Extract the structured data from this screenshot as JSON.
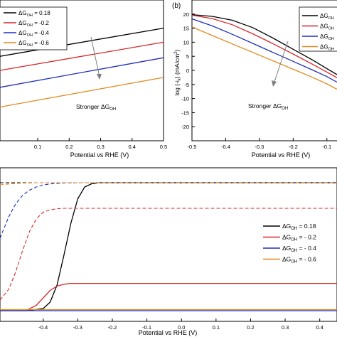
{
  "colors": {
    "s018": "#000000",
    "s02": "#d62728",
    "s04": "#1f2fbf",
    "s06": "#e08a1e",
    "arrow": "#808080"
  },
  "panel_b_label": "(b)",
  "chart_data": [
    {
      "id": "panel-a",
      "type": "line",
      "title": "",
      "xlabel": "Potential vs RHE (V)",
      "ylabel": "",
      "xlim": [
        -0.02,
        0.5
      ],
      "ylim": [
        0,
        10
      ],
      "xticks": [
        "0.1",
        "0.2",
        "0.3",
        "0.4",
        "0.5"
      ],
      "xtick_values": [
        0.1,
        0.2,
        0.3,
        0.4,
        0.5
      ],
      "grid": false,
      "legend_position": "top-left",
      "legend": [
        "ΔG_OH = 0.18",
        "ΔG_OH = -0.2",
        "ΔG_OH = -0.4",
        "ΔG_OH = -0.6"
      ],
      "annotation": "Stronger ΔG_OH",
      "series": [
        {
          "name": "ΔG_OH = 0.18",
          "color_key": "s018",
          "x": [
            -0.02,
            0.5
          ],
          "y": [
            6.0,
            8.0
          ]
        },
        {
          "name": "ΔG_OH = -0.2",
          "color_key": "s02",
          "x": [
            -0.02,
            0.5
          ],
          "y": [
            5.0,
            7.0
          ]
        },
        {
          "name": "ΔG_OH = -0.4",
          "color_key": "s04",
          "x": [
            -0.02,
            0.5
          ],
          "y": [
            3.8,
            5.9
          ]
        },
        {
          "name": "ΔG_OH = -0.6",
          "color_key": "s06",
          "x": [
            -0.02,
            0.5
          ],
          "y": [
            2.4,
            4.5
          ]
        }
      ]
    },
    {
      "id": "panel-b",
      "type": "line",
      "title": "",
      "xlabel": "Potential vs RHE (V)",
      "ylabel": "log (-i_k) (mA/cm²)",
      "xlim": [
        -0.5,
        -0.07
      ],
      "ylim": [
        -25,
        25
      ],
      "xticks": [
        "-0.5",
        "-0.4",
        "-0.3",
        "-0.2",
        "-0.1"
      ],
      "xtick_values": [
        -0.5,
        -0.4,
        -0.3,
        -0.2,
        -0.1
      ],
      "yticks": [
        "20",
        "15",
        "10",
        "5",
        "0",
        "-5",
        "-10",
        "-15",
        "-20"
      ],
      "ytick_values": [
        20,
        15,
        10,
        5,
        0,
        -5,
        -10,
        -15,
        -20
      ],
      "grid": false,
      "legend_position": "top-right",
      "legend": [
        "ΔG_OH",
        "ΔG_OH",
        "ΔG_OH",
        "ΔG_OH"
      ],
      "annotation": "Stronger ΔG_OH",
      "series": [
        {
          "name": "ΔG_OH = 0.18",
          "color_key": "s018",
          "x": [
            -0.5,
            -0.44,
            -0.38,
            -0.32,
            -0.26,
            -0.2,
            -0.14,
            -0.1,
            -0.07
          ],
          "y": [
            19.8,
            19.2,
            17.8,
            15.2,
            11.5,
            7.5,
            3.5,
            0.6,
            -1.5
          ]
        },
        {
          "name": "ΔG_OH = -0.2",
          "color_key": "s02",
          "x": [
            -0.5,
            -0.44,
            -0.38,
            -0.32,
            -0.26,
            -0.2,
            -0.14,
            -0.1,
            -0.07
          ],
          "y": [
            19.6,
            18.4,
            16.2,
            13.0,
            9.5,
            5.8,
            2.0,
            -0.6,
            -2.6
          ]
        },
        {
          "name": "ΔG_OH = -0.4",
          "color_key": "s04",
          "x": [
            -0.5,
            -0.44,
            -0.38,
            -0.32,
            -0.26,
            -0.2,
            -0.14,
            -0.1,
            -0.07
          ],
          "y": [
            18.3,
            15.8,
            12.8,
            9.6,
            6.4,
            3.2,
            0.0,
            -2.2,
            -4.2
          ]
        },
        {
          "name": "ΔG_OH = -0.6",
          "color_key": "s06",
          "x": [
            -0.5,
            -0.44,
            -0.38,
            -0.32,
            -0.26,
            -0.2,
            -0.14,
            -0.1,
            -0.07
          ],
          "y": [
            15.4,
            12.4,
            9.4,
            6.4,
            3.4,
            0.4,
            -2.6,
            -4.8,
            -6.7
          ]
        }
      ]
    },
    {
      "id": "panel-c",
      "type": "line",
      "title": "",
      "xlabel": "Potential vs RHE (V)",
      "ylabel": "",
      "xlim": [
        -0.525,
        0.45
      ],
      "ylim": [
        -6.5,
        0.7
      ],
      "xticks": [
        "-0.4",
        "-0.3",
        "-0.2",
        "-0.1",
        "0.0",
        "0.1",
        "0.2",
        "0.3",
        "0.4"
      ],
      "xtick_values": [
        -0.4,
        -0.3,
        -0.2,
        -0.1,
        0.0,
        0.1,
        0.2,
        0.3,
        0.4
      ],
      "grid": false,
      "legend_position": "right",
      "legend": [
        "ΔG_OH = 0.18",
        "ΔG_OH = - 0.2",
        "ΔG_OH = - 0.4",
        "ΔG_OH = - 0.6"
      ],
      "series": [
        {
          "name": "ΔG_OH = 0.18 (solid)",
          "color_key": "s018",
          "dashed": false,
          "x": [
            -0.525,
            -0.45,
            -0.4,
            -0.38,
            -0.36,
            -0.34,
            -0.32,
            -0.3,
            -0.28,
            -0.26,
            -0.24,
            -0.22,
            0.45
          ],
          "y": [
            -6.0,
            -6.0,
            -5.9,
            -5.6,
            -4.8,
            -3.4,
            -1.9,
            -0.75,
            -0.2,
            -0.05,
            0.0,
            0.0,
            0.0
          ]
        },
        {
          "name": "ΔG_OH = -0.2 (solid)",
          "color_key": "s02",
          "dashed": false,
          "x": [
            -0.525,
            -0.45,
            -0.42,
            -0.4,
            -0.38,
            -0.36,
            -0.34,
            -0.32,
            0.45
          ],
          "y": [
            -6.0,
            -6.0,
            -5.75,
            -5.4,
            -5.05,
            -4.85,
            -4.76,
            -4.72,
            -4.72
          ]
        },
        {
          "name": "ΔG_OH = -0.4 (solid)",
          "color_key": "s04",
          "dashed": false,
          "x": [
            -0.525,
            0.45
          ],
          "y": [
            -6.0,
            -6.0
          ]
        },
        {
          "name": "ΔG_OH = -0.6 (solid)",
          "color_key": "s06",
          "dashed": false,
          "x": [
            -0.525,
            0.45
          ],
          "y": [
            -5.95,
            -5.95
          ]
        },
        {
          "name": "ΔG_OH = 0.18 (dashed)",
          "color_key": "s018",
          "dashed": true,
          "x": [
            -0.525,
            -0.4,
            -0.3,
            -0.2,
            0.45
          ],
          "y": [
            0.0,
            0.0,
            0.0,
            0.0,
            0.0
          ]
        },
        {
          "name": "ΔG_OH = -0.2 (dashed)",
          "color_key": "s02",
          "dashed": true,
          "x": [
            -0.525,
            -0.5,
            -0.48,
            -0.46,
            -0.44,
            -0.42,
            -0.4,
            -0.38,
            -0.36,
            -0.34,
            -0.3,
            0.45
          ],
          "y": [
            -5.5,
            -5.0,
            -4.2,
            -3.2,
            -2.3,
            -1.7,
            -1.38,
            -1.27,
            -1.22,
            -1.2,
            -1.2,
            -1.2
          ]
        },
        {
          "name": "ΔG_OH = -0.4 (dashed)",
          "color_key": "s04",
          "dashed": true,
          "x": [
            -0.525,
            -0.5,
            -0.48,
            -0.46,
            -0.44,
            -0.42,
            -0.4,
            -0.37,
            -0.34,
            -0.3,
            0.45
          ],
          "y": [
            -2.6,
            -1.6,
            -1.0,
            -0.6,
            -0.35,
            -0.2,
            -0.1,
            -0.04,
            -0.01,
            0.0,
            0.0
          ]
        },
        {
          "name": "ΔG_OH = -0.6 (dashed)",
          "color_key": "s06",
          "dashed": true,
          "x": [
            -0.525,
            -0.5,
            -0.48,
            -0.46,
            -0.44,
            -0.42,
            -0.4,
            0.45
          ],
          "y": [
            -0.1,
            -0.06,
            -0.03,
            -0.02,
            -0.01,
            0.0,
            0.0,
            0.0
          ]
        }
      ]
    }
  ]
}
